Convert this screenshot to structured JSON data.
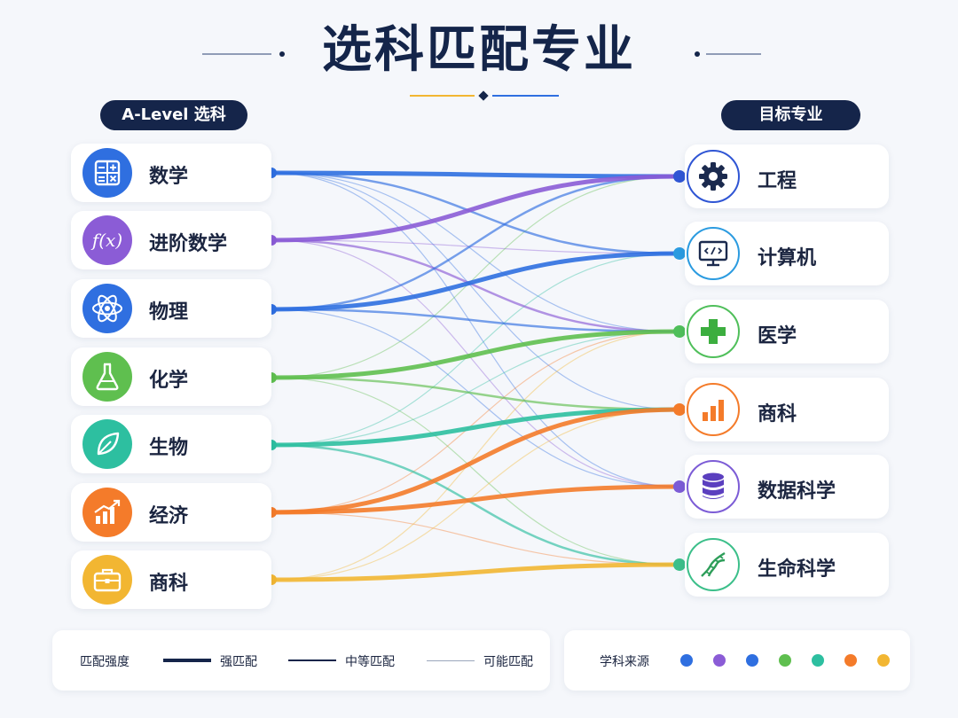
{
  "title": "选科匹配专业",
  "left_header": "A-Level 选科",
  "right_header": "目标专业",
  "subjects": [
    {
      "label": "数学",
      "icon": "calculator-icon",
      "color": "#2f6fe0"
    },
    {
      "label": "进阶数学",
      "icon": "function-fx-icon",
      "color": "#8b5cd6"
    },
    {
      "label": "物理",
      "icon": "atom-icon",
      "color": "#2f6fe0"
    },
    {
      "label": "化学",
      "icon": "flask-icon",
      "color": "#5fbf4f"
    },
    {
      "label": "生物",
      "icon": "leaf-icon",
      "color": "#2dbfa0"
    },
    {
      "label": "经济",
      "icon": "bar-chart-icon",
      "color": "#f47b2a"
    },
    {
      "label": "商科",
      "icon": "briefcase-icon",
      "color": "#f2b632"
    }
  ],
  "majors": [
    {
      "label": "工程",
      "icon": "gear-icon",
      "color": "#2f55d4",
      "fill": "#1b2a4e"
    },
    {
      "label": "计算机",
      "icon": "monitor-code-icon",
      "color": "#2b9be0",
      "fill": "#1b2a4e"
    },
    {
      "label": "医学",
      "icon": "medical-cross-icon",
      "color": "#4fbf5a",
      "fill": "#3cae3f"
    },
    {
      "label": "商科",
      "icon": "bar-chart-icon",
      "color": "#f47b2a",
      "fill": "#f47b2a"
    },
    {
      "label": "数据科学",
      "icon": "database-icon",
      "color": "#7c5cd6",
      "fill": "#5b3fbf"
    },
    {
      "label": "生命科学",
      "icon": "dna-icon",
      "color": "#3cbf8a",
      "fill": "#2e9e5a"
    }
  ],
  "links": [
    {
      "from": 0,
      "to": 0,
      "strength": "strong"
    },
    {
      "from": 0,
      "to": 1,
      "strength": "medium"
    },
    {
      "from": 0,
      "to": 2,
      "strength": "weak"
    },
    {
      "from": 0,
      "to": 3,
      "strength": "weak"
    },
    {
      "from": 0,
      "to": 4,
      "strength": "weak"
    },
    {
      "from": 1,
      "to": 0,
      "strength": "strong"
    },
    {
      "from": 1,
      "to": 2,
      "strength": "medium"
    },
    {
      "from": 1,
      "to": 1,
      "strength": "weak"
    },
    {
      "from": 1,
      "to": 4,
      "strength": "weak"
    },
    {
      "from": 2,
      "to": 0,
      "strength": "medium"
    },
    {
      "from": 2,
      "to": 1,
      "strength": "strong"
    },
    {
      "from": 2,
      "to": 2,
      "strength": "medium"
    },
    {
      "from": 2,
      "to": 4,
      "strength": "weak"
    },
    {
      "from": 3,
      "to": 2,
      "strength": "strong"
    },
    {
      "from": 3,
      "to": 3,
      "strength": "medium"
    },
    {
      "from": 3,
      "to": 5,
      "strength": "weak"
    },
    {
      "from": 3,
      "to": 0,
      "strength": "weak"
    },
    {
      "from": 4,
      "to": 3,
      "strength": "strong"
    },
    {
      "from": 4,
      "to": 5,
      "strength": "medium"
    },
    {
      "from": 4,
      "to": 2,
      "strength": "weak"
    },
    {
      "from": 4,
      "to": 1,
      "strength": "weak"
    },
    {
      "from": 5,
      "to": 3,
      "strength": "strong"
    },
    {
      "from": 5,
      "to": 4,
      "strength": "strong"
    },
    {
      "from": 5,
      "to": 5,
      "strength": "weak"
    },
    {
      "from": 5,
      "to": 2,
      "strength": "weak"
    },
    {
      "from": 6,
      "to": 5,
      "strength": "strong"
    },
    {
      "from": 6,
      "to": 3,
      "strength": "weak"
    },
    {
      "from": 6,
      "to": 2,
      "strength": "weak"
    }
  ],
  "legend": {
    "strength_title": "匹配强度",
    "strong": "强匹配",
    "medium": "中等匹配",
    "weak": "可能匹配",
    "source_title": "学科来源",
    "source_colors": [
      "#2f6fe0",
      "#8b5cd6",
      "#2f6fe0",
      "#5fbf4f",
      "#2dbfa0",
      "#f47b2a",
      "#f2b632"
    ],
    "line_color": "#15254a"
  }
}
